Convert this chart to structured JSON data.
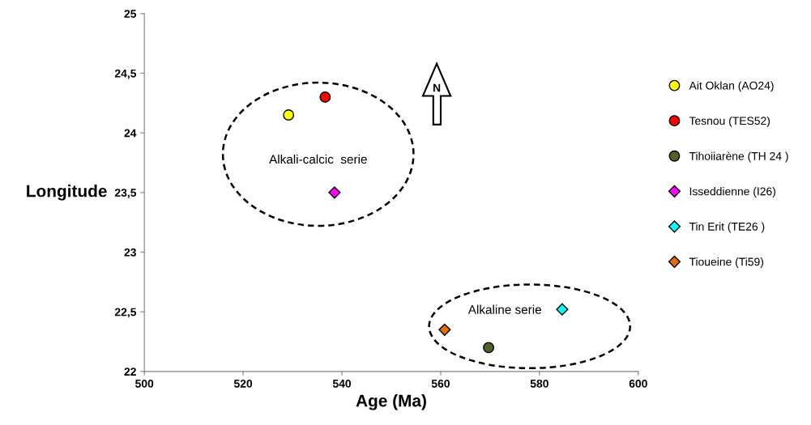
{
  "chart_data": {
    "type": "scatter",
    "xlabel": "Age (Ma)",
    "ylabel": "Longitude",
    "xlim": [
      500,
      600
    ],
    "xticks": [
      500,
      520,
      540,
      560,
      580,
      600
    ],
    "ylim": [
      22,
      25
    ],
    "yticks": [
      {
        "value": 22,
        "label": "22"
      },
      {
        "value": 22.5,
        "label": "22,5"
      },
      {
        "value": 23,
        "label": "23"
      },
      {
        "value": 23.5,
        "label": "23,5"
      },
      {
        "value": 24,
        "label": "24"
      },
      {
        "value": 24.5,
        "label": "24,5"
      },
      {
        "value": 25,
        "label": "25"
      }
    ],
    "grid": false,
    "legend": "right",
    "series": [
      {
        "name": "Ait Oklan (AO24)",
        "color": "#ffff00",
        "marker": "circle",
        "x": [
          529.2
        ],
        "values": [
          24.15
        ]
      },
      {
        "name": "Tesnou (TES52)",
        "color": "#ff0000",
        "marker": "circle",
        "x": [
          536.6
        ],
        "values": [
          24.3
        ]
      },
      {
        "name": "Tihoiiarène (TH 24 )",
        "color": "#4f6228",
        "marker": "circle",
        "x": [
          569.7
        ],
        "values": [
          22.2
        ]
      },
      {
        "name": "Isseddienne (I26)",
        "color": "#ff00ff",
        "marker": "diamond",
        "x": [
          538.5
        ],
        "values": [
          23.5
        ]
      },
      {
        "name": "Tin Erit (TE26 )",
        "color": "#00ffff",
        "marker": "diamond",
        "x": [
          584.6
        ],
        "values": [
          22.52
        ]
      },
      {
        "name": "Tioueine (Ti59)",
        "color": "#e46c0a",
        "marker": "diamond",
        "x": [
          560.8
        ],
        "values": [
          22.35
        ]
      }
    ],
    "annotations": [
      "Alkali-calcic  serie",
      "Alkaline serie",
      "N"
    ]
  }
}
